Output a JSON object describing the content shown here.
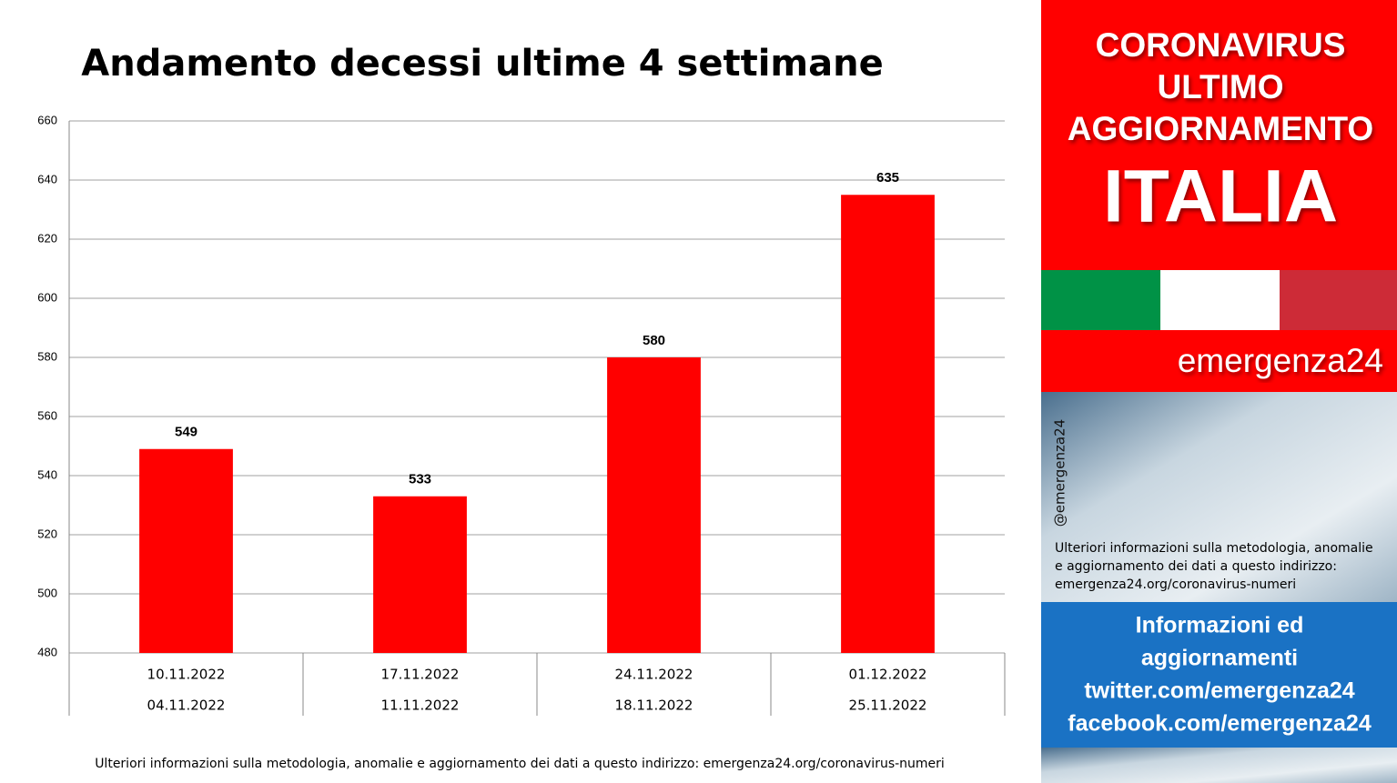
{
  "chart_data": {
    "type": "bar",
    "title": "Andamento decessi ultime 4 settimane",
    "categories": [
      [
        "10.11.2022",
        "04.11.2022"
      ],
      [
        "17.11.2022",
        "11.11.2022"
      ],
      [
        "24.11.2022",
        "18.11.2022"
      ],
      [
        "01.12.2022",
        "25.11.2022"
      ]
    ],
    "values": [
      549,
      533,
      580,
      635
    ],
    "color": "#ff0000",
    "ylim": [
      480,
      660
    ],
    "yticks": [
      480,
      500,
      520,
      540,
      560,
      580,
      600,
      620,
      640,
      660
    ],
    "grid": true
  },
  "footnote": "Ulteriori informazioni sulla metodologia, anomalie e aggiornamento dei dati a questo indirizzo: emergenza24.org/coronavirus-numeri",
  "sidebar": {
    "headline": [
      "CORONAVIRUS",
      "ULTIMO",
      "AGGIORNAMENTO"
    ],
    "country": "ITALIA",
    "brand": "emergenza24",
    "handle": "@emergenza24",
    "info": [
      "Ulteriori informazioni sulla metodologia, anomalie",
      "e aggiornamento dei dati a questo indirizzo:",
      "emergenza24.org/coronavirus-numeri"
    ],
    "links": [
      "Informazioni ed",
      "aggiornamenti",
      "twitter.com/emergenza24",
      "facebook.com/emergenza24"
    ]
  }
}
